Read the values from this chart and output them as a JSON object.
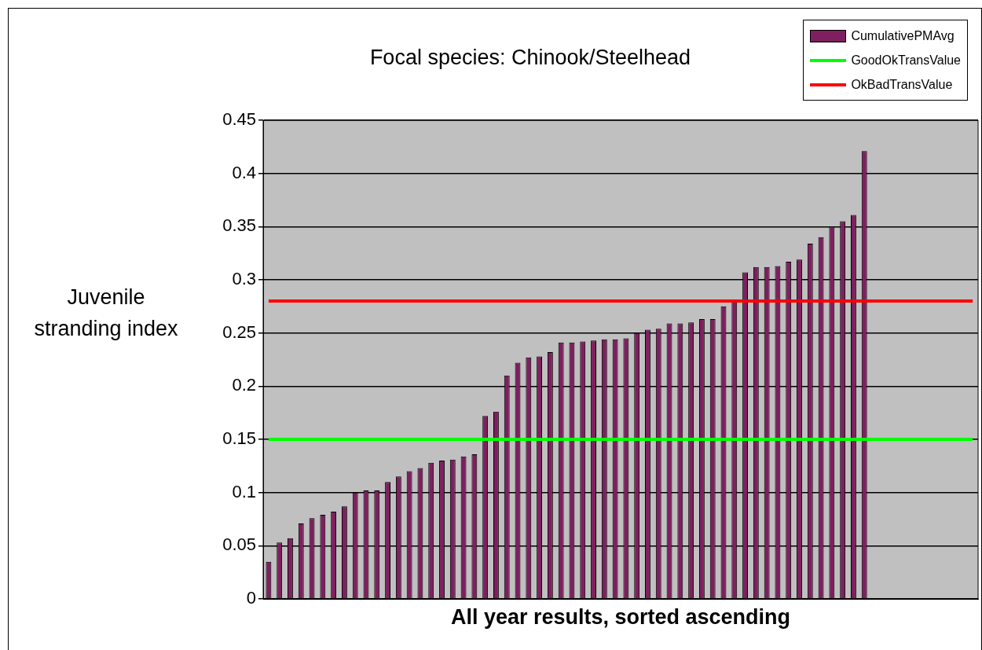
{
  "chart_data": {
    "type": "bar",
    "title": "Focal species: Chinook/Steelhead",
    "xlabel": "All year results, sorted ascending",
    "ylabel": "Juvenile\nstranding index",
    "categories": [
      null,
      null,
      null,
      null,
      null,
      null,
      null,
      null,
      null,
      null,
      null,
      null,
      null,
      null,
      null,
      null,
      null,
      null,
      null,
      null,
      null,
      null,
      null,
      null,
      null,
      null,
      null,
      null,
      null,
      null,
      null,
      null,
      null,
      null,
      null,
      null,
      null,
      null,
      null,
      null,
      null,
      null,
      null,
      null,
      null,
      null,
      null,
      null,
      null,
      null,
      null,
      null,
      null,
      null,
      null,
      null,
      null,
      null,
      null,
      null,
      null,
      null,
      null,
      null,
      null,
      null
    ],
    "series": [
      {
        "name": "CumulativePMAvg",
        "color": "#7f1f5f",
        "values": [
          0.035,
          0.053,
          0.057,
          0.071,
          0.076,
          0.079,
          0.082,
          0.087,
          0.1,
          0.102,
          0.102,
          0.11,
          0.115,
          0.12,
          0.123,
          0.128,
          0.13,
          0.131,
          0.134,
          0.136,
          0.172,
          0.176,
          0.21,
          0.222,
          0.227,
          0.228,
          0.232,
          0.241,
          0.241,
          0.242,
          0.243,
          0.244,
          0.244,
          0.245,
          0.25,
          0.253,
          0.254,
          0.259,
          0.259,
          0.26,
          0.263,
          0.263,
          0.275,
          0.28,
          0.307,
          0.312,
          0.312,
          0.313,
          0.317,
          0.319,
          0.334,
          0.34,
          0.35,
          0.355,
          0.361,
          0.421,
          null,
          null,
          null,
          null,
          null,
          null,
          null,
          null,
          null,
          null
        ]
      },
      {
        "name": "GoodOkTransValue",
        "type": "line",
        "color": "#00ff00",
        "values": [
          0.15,
          0.15,
          0.15,
          0.15,
          0.15,
          0.15,
          0.15,
          0.15,
          0.15,
          0.15,
          0.15,
          0.15,
          0.15,
          0.15,
          0.15,
          0.15,
          0.15,
          0.15,
          0.15,
          0.15,
          0.15,
          0.15,
          0.15,
          0.15,
          0.15,
          0.15,
          0.15,
          0.15,
          0.15,
          0.15,
          0.15,
          0.15,
          0.15,
          0.15,
          0.15,
          0.15,
          0.15,
          0.15,
          0.15,
          0.15,
          0.15,
          0.15,
          0.15,
          0.15,
          0.15,
          0.15,
          0.15,
          0.15,
          0.15,
          0.15,
          0.15,
          0.15,
          0.15,
          0.15,
          0.15,
          0.15,
          0.15,
          0.15,
          0.15,
          0.15,
          0.15,
          0.15,
          0.15,
          0.15,
          0.15,
          0.15
        ]
      },
      {
        "name": "OkBadTransValue",
        "type": "line",
        "color": "#ff0000",
        "values": [
          0.28,
          0.28,
          0.28,
          0.28,
          0.28,
          0.28,
          0.28,
          0.28,
          0.28,
          0.28,
          0.28,
          0.28,
          0.28,
          0.28,
          0.28,
          0.28,
          0.28,
          0.28,
          0.28,
          0.28,
          0.28,
          0.28,
          0.28,
          0.28,
          0.28,
          0.28,
          0.28,
          0.28,
          0.28,
          0.28,
          0.28,
          0.28,
          0.28,
          0.28,
          0.28,
          0.28,
          0.28,
          0.28,
          0.28,
          0.28,
          0.28,
          0.28,
          0.28,
          0.28,
          0.28,
          0.28,
          0.28,
          0.28,
          0.28,
          0.28,
          0.28,
          0.28,
          0.28,
          0.28,
          0.28,
          0.28,
          0.28,
          0.28,
          0.28,
          0.28,
          0.28,
          0.28,
          0.28,
          0.28,
          0.28,
          0.28
        ]
      }
    ],
    "ylim": [
      0,
      0.45
    ],
    "yticks": [
      0,
      0.05,
      0.1,
      0.15,
      0.2,
      0.25,
      0.3,
      0.35,
      0.4,
      0.45
    ],
    "grid": "y",
    "legend": "top right",
    "tick_labels": "y",
    "marker": "none",
    "line_style": "solid"
  }
}
